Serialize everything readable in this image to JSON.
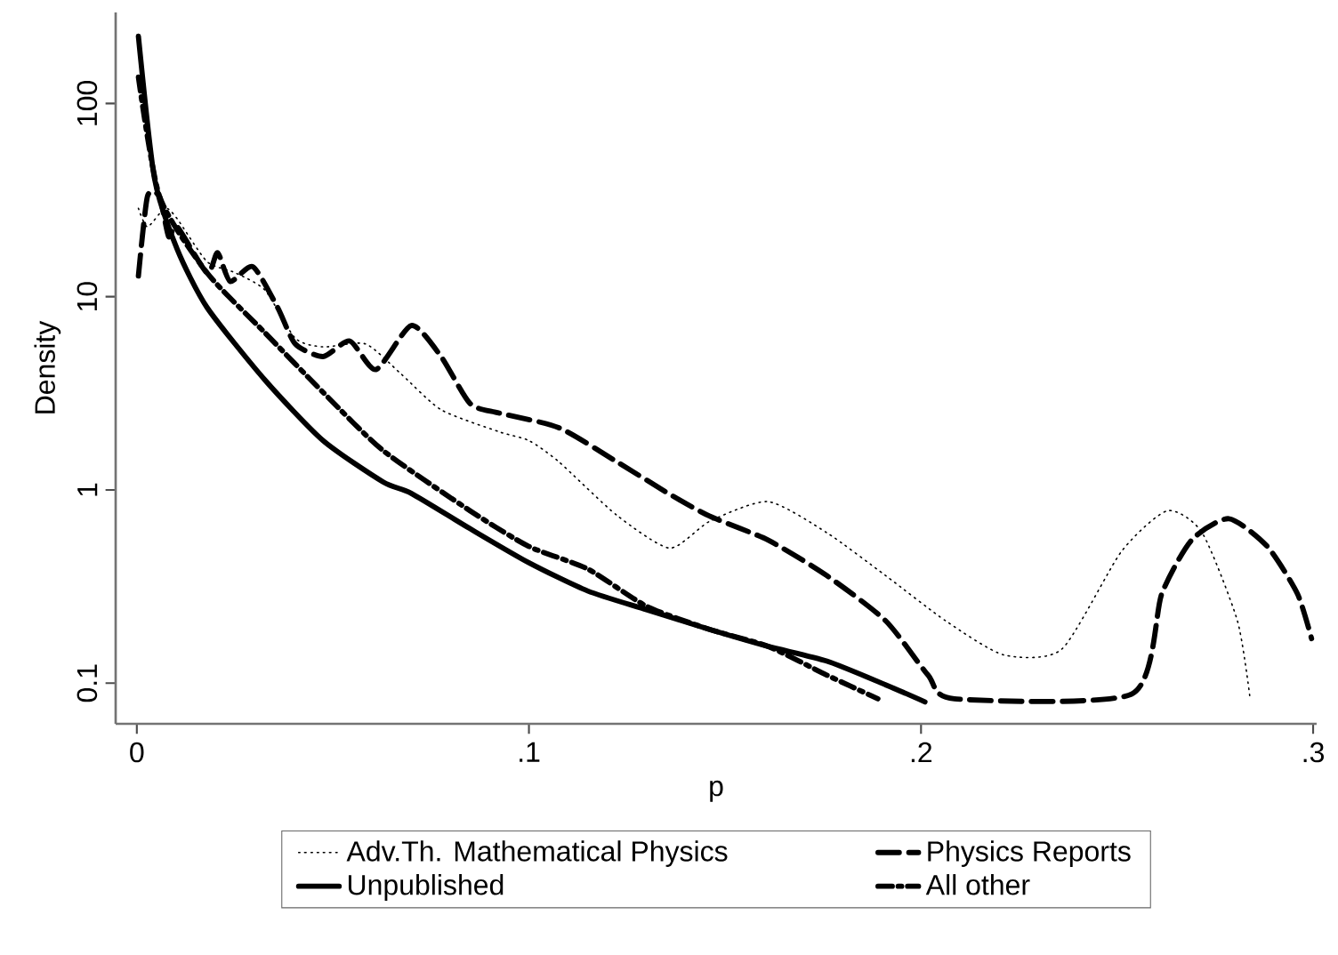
{
  "chart_data": {
    "type": "line",
    "xlabel": "p",
    "ylabel": "Density",
    "log": "y",
    "legend": "bottom",
    "grid": false,
    "marker": "none",
    "xlim": [
      -0.0054,
      0.3009
    ],
    "ylim": [
      0.0616,
      296
    ],
    "xticks": [
      0,
      {
        "value": 0.1,
        "label": ".1"
      },
      {
        "value": 0.2,
        "label": ".2"
      },
      {
        "value": 0.3,
        "label": ".3"
      }
    ],
    "yticks": [
      0.1,
      1,
      10,
      100
    ],
    "series": [
      {
        "name": "Adv.Th. Mathematical Physics",
        "color": "#000000",
        "line_style": "dotted",
        "x": [
          0.0004,
          0.0027,
          0.0072,
          0.0103,
          0.0179,
          0.0251,
          0.0327,
          0.0404,
          0.0475,
          0.0583,
          0.0673,
          0.0776,
          0.0924,
          0.1,
          0.1076,
          0.1224,
          0.1359,
          0.1462,
          0.161,
          0.176,
          0.191,
          0.2063,
          0.2211,
          0.2359,
          0.2511,
          0.2628,
          0.2717,
          0.2807,
          0.2839
        ],
        "values": [
          28.7,
          23,
          28.7,
          25.3,
          15.2,
          13.3,
          10.8,
          6.1,
          5.5,
          5.7,
          4.0,
          2.6,
          2.0,
          1.8,
          1.4,
          0.74,
          0.5,
          0.69,
          0.87,
          0.6,
          0.36,
          0.21,
          0.14,
          0.15,
          0.48,
          0.78,
          0.6,
          0.21,
          0.084
        ]
      },
      {
        "name": "Physics Reports",
        "color": "#000000",
        "line_style": "dashed",
        "x": [
          0.0004,
          0.0027,
          0.0058,
          0.0081,
          0.0103,
          0.0179,
          0.0206,
          0.0238,
          0.0296,
          0.0359,
          0.0404,
          0.0475,
          0.0543,
          0.061,
          0.07,
          0.0776,
          0.085,
          0.0924,
          0.1076,
          0.1224,
          0.1359,
          0.1462,
          0.161,
          0.176,
          0.191,
          0.2018,
          0.2085,
          0.2538,
          0.2614,
          0.269,
          0.2785,
          0.2883,
          0.296,
          0.2996
        ],
        "values": [
          12.8,
          33,
          33,
          20.5,
          23,
          13.3,
          16.9,
          12,
          14.3,
          8.8,
          5.7,
          4.9,
          5.9,
          4.2,
          7.1,
          4.9,
          2.8,
          2.5,
          2.1,
          1.4,
          0.95,
          0.73,
          0.55,
          0.36,
          0.21,
          0.11,
          0.083,
          0.088,
          0.29,
          0.55,
          0.71,
          0.51,
          0.29,
          0.17
        ]
      },
      {
        "name": "Unpublished",
        "color": "#000000",
        "line_style": "solid",
        "x": [
          0.0004,
          0.0045,
          0.0103,
          0.0179,
          0.0327,
          0.0475,
          0.0628,
          0.07,
          0.085,
          0.1,
          0.115,
          0.13,
          0.146,
          0.161,
          0.176,
          0.191,
          0.201
        ],
        "values": [
          223,
          41,
          17.6,
          8.8,
          3.7,
          1.8,
          1.1,
          0.96,
          0.63,
          0.42,
          0.3,
          0.24,
          0.19,
          0.155,
          0.13,
          0.098,
          0.08
        ]
      },
      {
        "name": "All other",
        "color": "#000000",
        "line_style": "dashdot",
        "x": [
          0.0004,
          0.0058,
          0.0179,
          0.0327,
          0.0475,
          0.0628,
          0.085,
          0.1,
          0.115,
          0.13,
          0.146,
          0.161,
          0.176,
          0.189
        ],
        "values": [
          137,
          33,
          13.3,
          6.5,
          3.2,
          1.6,
          0.78,
          0.51,
          0.39,
          0.25,
          0.19,
          0.155,
          0.11,
          0.083
        ]
      }
    ]
  }
}
